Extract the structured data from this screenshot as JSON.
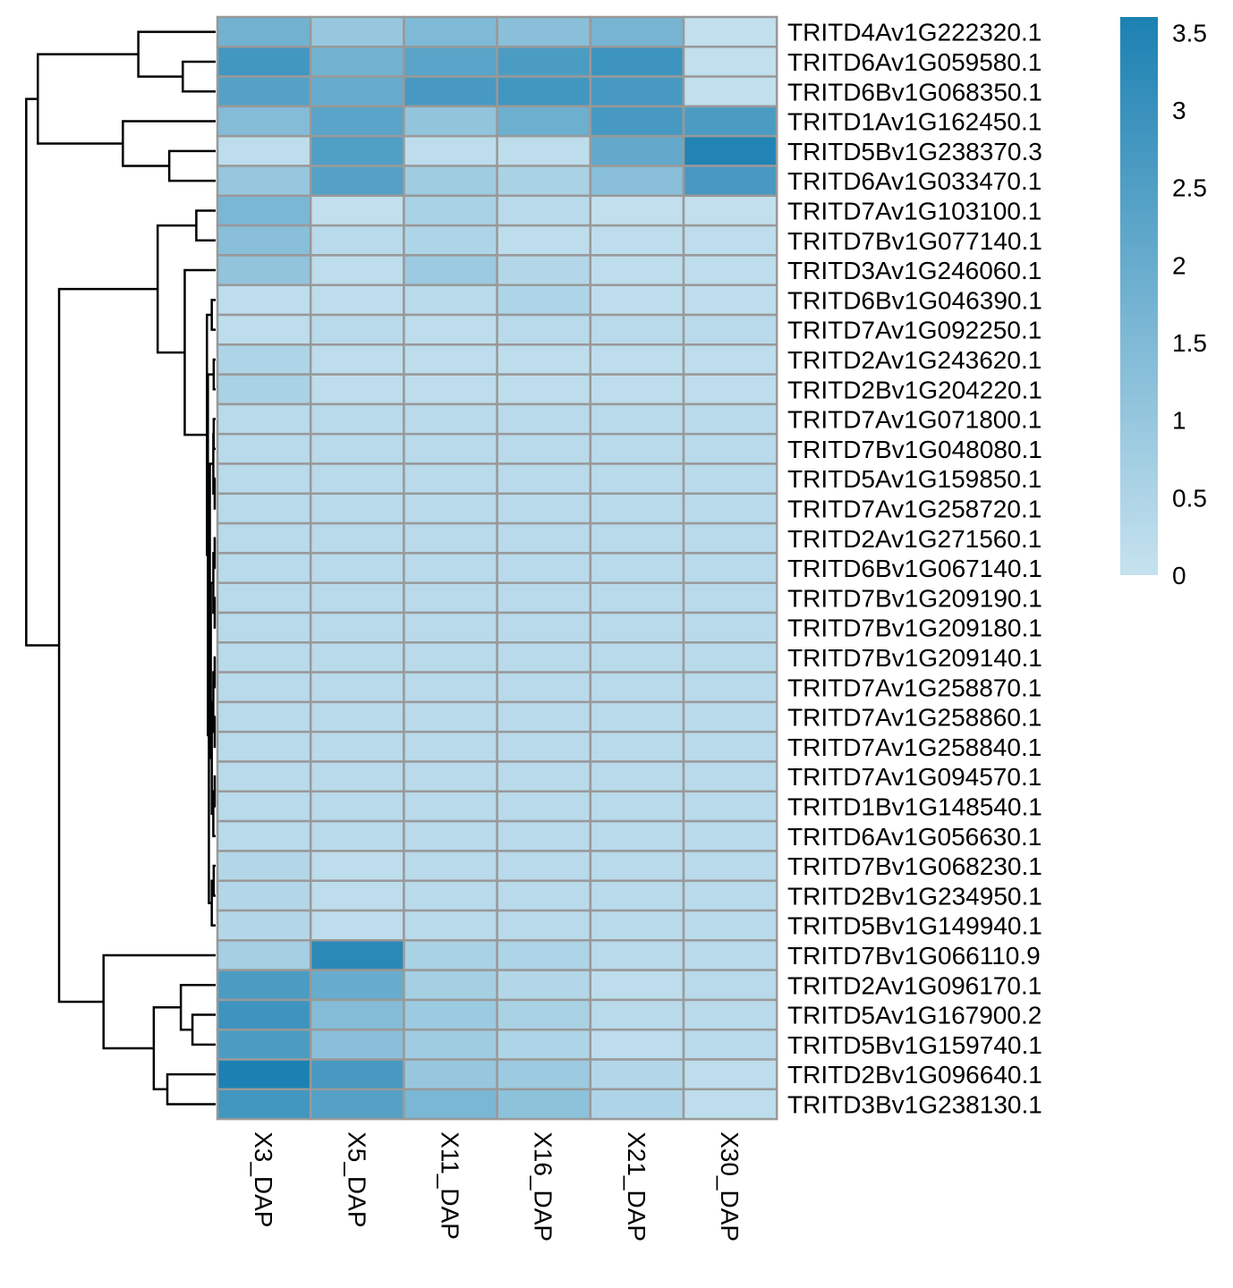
{
  "chart_data": {
    "type": "heatmap",
    "title": "",
    "xlabel": "",
    "ylabel": "",
    "columns": [
      "X3_DAP",
      "X5_DAP",
      "X11_DAP",
      "X16_DAP",
      "X21_DAP",
      "X30_DAP"
    ],
    "rows": [
      "TRITD4Av1G222320.1",
      "TRITD6Av1G059580.1",
      "TRITD6Bv1G068350.1",
      "TRITD1Av1G162450.1",
      "TRITD5Bv1G238370.3",
      "TRITD6Av1G033470.1",
      "TRITD7Av1G103100.1",
      "TRITD7Bv1G077140.1",
      "TRITD3Av1G246060.1",
      "TRITD6Bv1G046390.1",
      "TRITD7Av1G092250.1",
      "TRITD2Av1G243620.1",
      "TRITD2Bv1G204220.1",
      "TRITD7Av1G071800.1",
      "TRITD7Bv1G048080.1",
      "TRITD5Av1G159850.1",
      "TRITD7Av1G258720.1",
      "TRITD2Av1G271560.1",
      "TRITD6Bv1G067140.1",
      "TRITD7Bv1G209190.1",
      "TRITD7Bv1G209180.1",
      "TRITD7Bv1G209140.1",
      "TRITD7Av1G258870.1",
      "TRITD7Av1G258860.1",
      "TRITD7Av1G258840.1",
      "TRITD7Av1G094570.1",
      "TRITD1Bv1G148540.1",
      "TRITD6Av1G056630.1",
      "TRITD7Bv1G068230.1",
      "TRITD2Bv1G234950.1",
      "TRITD5Bv1G149940.1",
      "TRITD7Bv1G066110.9",
      "TRITD2Av1G096170.1",
      "TRITD5Av1G167900.2",
      "TRITD5Bv1G159740.1",
      "TRITD2Bv1G096640.1",
      "TRITD3Bv1G238130.1"
    ],
    "values": [
      [
        1.8,
        1.0,
        1.5,
        1.3,
        1.7,
        0.1
      ],
      [
        2.8,
        1.8,
        2.3,
        2.6,
        2.9,
        0.1
      ],
      [
        2.4,
        2.0,
        2.7,
        2.8,
        2.7,
        0.1
      ],
      [
        1.4,
        2.3,
        1.1,
        1.9,
        2.7,
        2.6
      ],
      [
        0.2,
        2.5,
        0.2,
        0.2,
        2.1,
        3.5
      ],
      [
        1.0,
        2.4,
        0.8,
        0.6,
        1.3,
        2.7
      ],
      [
        1.6,
        0.1,
        0.6,
        0.3,
        0.1,
        0.1
      ],
      [
        1.3,
        0.3,
        0.5,
        0.2,
        0.2,
        0.2
      ],
      [
        1.1,
        0.2,
        0.9,
        0.4,
        0.2,
        0.2
      ],
      [
        0.2,
        0.2,
        0.3,
        0.5,
        0.2,
        0.2
      ],
      [
        0.2,
        0.3,
        0.2,
        0.3,
        0.3,
        0.3
      ],
      [
        0.5,
        0.2,
        0.2,
        0.2,
        0.2,
        0.2
      ],
      [
        0.6,
        0.2,
        0.2,
        0.2,
        0.2,
        0.2
      ],
      [
        0.3,
        0.3,
        0.3,
        0.3,
        0.3,
        0.3
      ],
      [
        0.3,
        0.3,
        0.3,
        0.3,
        0.3,
        0.3
      ],
      [
        0.3,
        0.3,
        0.3,
        0.3,
        0.3,
        0.3
      ],
      [
        0.3,
        0.3,
        0.3,
        0.3,
        0.3,
        0.3
      ],
      [
        0.3,
        0.3,
        0.3,
        0.3,
        0.3,
        0.3
      ],
      [
        0.3,
        0.3,
        0.3,
        0.3,
        0.3,
        0.3
      ],
      [
        0.3,
        0.3,
        0.3,
        0.3,
        0.3,
        0.3
      ],
      [
        0.3,
        0.3,
        0.3,
        0.3,
        0.3,
        0.3
      ],
      [
        0.3,
        0.3,
        0.3,
        0.3,
        0.3,
        0.3
      ],
      [
        0.3,
        0.3,
        0.3,
        0.3,
        0.3,
        0.3
      ],
      [
        0.3,
        0.3,
        0.3,
        0.3,
        0.3,
        0.3
      ],
      [
        0.3,
        0.3,
        0.3,
        0.3,
        0.3,
        0.3
      ],
      [
        0.3,
        0.3,
        0.3,
        0.3,
        0.3,
        0.3
      ],
      [
        0.3,
        0.3,
        0.3,
        0.3,
        0.3,
        0.3
      ],
      [
        0.3,
        0.3,
        0.3,
        0.3,
        0.3,
        0.3
      ],
      [
        0.4,
        0.2,
        0.3,
        0.3,
        0.3,
        0.3
      ],
      [
        0.4,
        0.2,
        0.3,
        0.3,
        0.3,
        0.3
      ],
      [
        0.4,
        0.2,
        0.3,
        0.3,
        0.3,
        0.3
      ],
      [
        0.7,
        3.3,
        0.6,
        0.5,
        0.3,
        0.3
      ],
      [
        2.6,
        2.0,
        0.7,
        0.4,
        0.2,
        0.3
      ],
      [
        2.9,
        1.4,
        0.9,
        0.6,
        0.3,
        0.3
      ],
      [
        2.6,
        1.3,
        0.8,
        0.5,
        0.2,
        0.3
      ],
      [
        3.6,
        2.7,
        1.0,
        0.9,
        0.4,
        0.2
      ],
      [
        2.8,
        2.4,
        1.6,
        1.2,
        0.5,
        0.2
      ]
    ],
    "color_scale": {
      "min": 0,
      "max": 3.6,
      "low_color": "#c6e2ef",
      "high_color": "#1c81b2",
      "ticks": [
        "0",
        "0.5",
        "1",
        "1.5",
        "2",
        "2.5",
        "3",
        "3.5"
      ]
    },
    "cell_border_color": "#999999",
    "dendrogram_color": "#000000",
    "row_dendrogram": {
      "note": "merge heights in relative units (0 = leaves, 1 = root)",
      "merges": [
        {
          "a": "L1",
          "b": "L2",
          "h": 0.17,
          "id": "c1"
        },
        {
          "a": "L0",
          "b": "c1",
          "h": 0.4,
          "id": "c2"
        },
        {
          "a": "L4",
          "b": "L5",
          "h": 0.24,
          "id": "c3"
        },
        {
          "a": "L3",
          "b": "c3",
          "h": 0.48,
          "id": "c4"
        },
        {
          "a": "c2",
          "b": "c4",
          "h": 0.92,
          "id": "c5"
        },
        {
          "a": "L6",
          "b": "L7",
          "h": 0.1,
          "id": "c6"
        },
        {
          "a": "L9",
          "b": "L10",
          "h": 0.02,
          "id": "c7"
        },
        {
          "a": "L11",
          "b": "L12",
          "h": 0.01,
          "id": "c8"
        },
        {
          "a": "L13",
          "b": "L14",
          "h": 0.01,
          "id": "c9"
        },
        {
          "a": "L15",
          "b": "L16",
          "h": 0.005,
          "id": "c10"
        },
        {
          "a": "c9",
          "b": "c10",
          "h": 0.012,
          "id": "c11"
        },
        {
          "a": "L17",
          "b": "L18",
          "h": 0.005,
          "id": "c12"
        },
        {
          "a": "L19",
          "b": "L20",
          "h": 0.005,
          "id": "c13"
        },
        {
          "a": "c12",
          "b": "c13",
          "h": 0.012,
          "id": "c14"
        },
        {
          "a": "L21",
          "b": "L22",
          "h": 0.005,
          "id": "c15"
        },
        {
          "a": "L23",
          "b": "L24",
          "h": 0.005,
          "id": "c16"
        },
        {
          "a": "c15",
          "b": "c16",
          "h": 0.012,
          "id": "c17"
        },
        {
          "a": "L25",
          "b": "L26",
          "h": 0.005,
          "id": "c18"
        },
        {
          "a": "c18",
          "b": "L27",
          "h": 0.012,
          "id": "c19"
        },
        {
          "a": "c17",
          "b": "c19",
          "h": 0.02,
          "id": "c20"
        },
        {
          "a": "c14",
          "b": "c20",
          "h": 0.025,
          "id": "c21"
        },
        {
          "a": "c11",
          "b": "c21",
          "h": 0.03,
          "id": "c22"
        },
        {
          "a": "L28",
          "b": "L29",
          "h": 0.01,
          "id": "c23"
        },
        {
          "a": "c23",
          "b": "L30",
          "h": 0.02,
          "id": "c24"
        },
        {
          "a": "c22",
          "b": "c24",
          "h": 0.035,
          "id": "c25"
        },
        {
          "a": "c8",
          "b": "c25",
          "h": 0.04,
          "id": "c26"
        },
        {
          "a": "c7",
          "b": "c26",
          "h": 0.045,
          "id": "c27"
        },
        {
          "a": "L8",
          "b": "c27",
          "h": 0.16,
          "id": "c28"
        },
        {
          "a": "c6",
          "b": "c28",
          "h": 0.3,
          "id": "c29"
        },
        {
          "a": "L33",
          "b": "L34",
          "h": 0.12,
          "id": "c30"
        },
        {
          "a": "L32",
          "b": "c30",
          "h": 0.18,
          "id": "c31"
        },
        {
          "a": "L35",
          "b": "L36",
          "h": 0.25,
          "id": "c32"
        },
        {
          "a": "c31",
          "b": "c32",
          "h": 0.32,
          "id": "c33"
        },
        {
          "a": "L31",
          "b": "c33",
          "h": 0.58,
          "id": "c34"
        },
        {
          "a": "c29",
          "b": "c34",
          "h": 0.81,
          "id": "c35"
        },
        {
          "a": "c5",
          "b": "c35",
          "h": 0.98,
          "id": "c36"
        }
      ]
    }
  }
}
